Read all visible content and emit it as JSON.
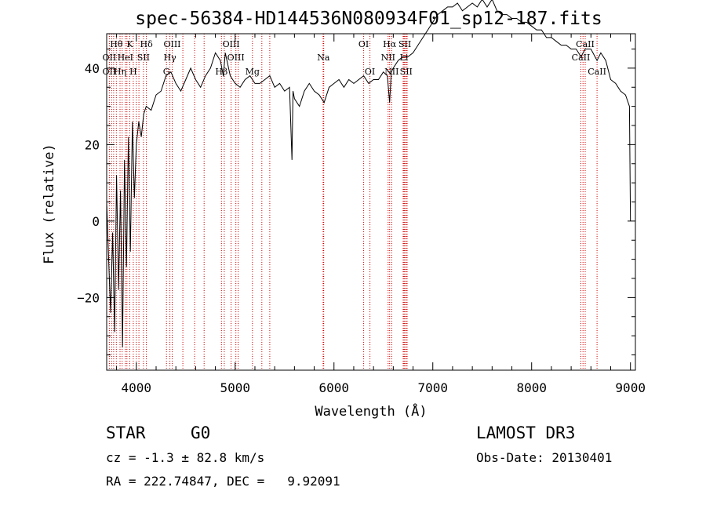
{
  "chart_data": {
    "type": "line",
    "title": "spec-56384-HD144536N080934F01_sp12-187.fits",
    "xlabel": "Wavelength (Å)",
    "ylabel": "Flux (relative)",
    "xlim": [
      3700,
      9050
    ],
    "ylim": [
      -39,
      49
    ],
    "xticks": [
      4000,
      5000,
      6000,
      7000,
      8000,
      9000
    ],
    "yticks": [
      -20,
      0,
      20,
      40
    ],
    "spectrum": {
      "name": "flux",
      "x": [
        3700,
        3720,
        3740,
        3760,
        3780,
        3800,
        3820,
        3840,
        3860,
        3880,
        3900,
        3920,
        3940,
        3960,
        3980,
        4000,
        4025,
        4050,
        4075,
        4100,
        4150,
        4200,
        4250,
        4300,
        4350,
        4400,
        4450,
        4500,
        4550,
        4600,
        4650,
        4700,
        4750,
        4800,
        4850,
        4880,
        4900,
        4950,
        5000,
        5050,
        5100,
        5150,
        5200,
        5250,
        5300,
        5350,
        5400,
        5450,
        5500,
        5550,
        5575,
        5585,
        5600,
        5650,
        5700,
        5750,
        5800,
        5850,
        5900,
        5950,
        6000,
        6050,
        6100,
        6150,
        6200,
        6250,
        6300,
        6350,
        6400,
        6450,
        6500,
        6540,
        6563,
        6580,
        6600,
        6650,
        6700,
        6750,
        6800,
        6850,
        6900,
        6950,
        7000,
        7050,
        7100,
        7150,
        7200,
        7250,
        7300,
        7350,
        7400,
        7450,
        7500,
        7550,
        7600,
        7650,
        7700,
        7750,
        7800,
        7850,
        7900,
        7950,
        8000,
        8050,
        8100,
        8150,
        8200,
        8250,
        8300,
        8350,
        8400,
        8450,
        8500,
        8542,
        8600,
        8662,
        8700,
        8750,
        8800,
        8850,
        8900,
        8950,
        8990,
        9000
      ],
      "values": [
        5,
        -10,
        -24,
        -3,
        -29,
        12,
        -18,
        8,
        -33,
        16,
        -12,
        22,
        -8,
        26,
        6,
        20,
        26,
        22,
        28,
        30,
        29,
        33,
        34,
        38,
        39,
        36,
        34,
        37,
        40,
        37,
        35,
        38,
        40,
        44,
        42,
        38,
        44,
        38,
        36,
        35,
        37,
        38,
        36,
        36,
        37,
        38,
        35,
        36,
        34,
        35,
        16,
        34,
        32,
        30,
        34,
        36,
        34,
        33,
        31,
        35,
        36,
        37,
        35,
        37,
        36,
        37,
        38,
        36,
        37,
        37,
        39,
        38,
        31,
        39,
        40,
        42,
        43,
        43,
        44,
        46,
        48,
        50,
        52,
        54,
        55,
        56,
        56,
        57,
        55,
        56,
        57,
        56,
        58,
        56,
        58,
        55,
        54,
        54,
        53,
        53,
        52,
        52,
        51,
        50,
        50,
        48,
        48,
        47,
        46,
        46,
        45,
        45,
        43,
        45,
        45,
        42,
        44,
        42,
        37,
        36,
        34,
        33,
        30,
        0
      ]
    },
    "spectral_lines": [
      {
        "label": "Hθ",
        "wavelength": 3798,
        "row": 1
      },
      {
        "label": "OII",
        "wavelength": 3727,
        "row": 2
      },
      {
        "label": "OII",
        "wavelength": 3727,
        "row": 3
      },
      {
        "label": "K",
        "wavelength": 3934,
        "row": 1
      },
      {
        "label": "HeI",
        "wavelength": 3889,
        "row": 2
      },
      {
        "label": "Hη",
        "wavelength": 3835,
        "row": 3
      },
      {
        "label": "SII",
        "wavelength": 4072,
        "row": 2
      },
      {
        "label": "Hδ",
        "wavelength": 4102,
        "row": 1
      },
      {
        "label": "H",
        "wavelength": 3969,
        "row": 3
      },
      {
        "label": "OIII",
        "wavelength": 4363,
        "row": 1
      },
      {
        "label": "Hγ",
        "wavelength": 4340,
        "row": 2
      },
      {
        "label": "G",
        "wavelength": 4305,
        "row": 3
      },
      {
        "label": "Hβ",
        "wavelength": 4861,
        "row": 3
      },
      {
        "label": "OIII",
        "wavelength": 4959,
        "row": 1
      },
      {
        "label": "OIII",
        "wavelength": 5007,
        "row": 2
      },
      {
        "label": "Mg",
        "wavelength": 5175,
        "row": 3
      },
      {
        "label": "Na",
        "wavelength": 5893,
        "row": 2
      },
      {
        "label": "OI",
        "wavelength": 6300,
        "row": 1
      },
      {
        "label": "OI",
        "wavelength": 6364,
        "row": 3
      },
      {
        "label": "Hα",
        "wavelength": 6563,
        "row": 1
      },
      {
        "label": "SII",
        "wavelength": 6717,
        "row": 1
      },
      {
        "label": "NII",
        "wavelength": 6548,
        "row": 2
      },
      {
        "label": "Li",
        "wavelength": 6708,
        "row": 2
      },
      {
        "label": "NII",
        "wavelength": 6584,
        "row": 3
      },
      {
        "label": "SII",
        "wavelength": 6731,
        "row": 3
      },
      {
        "label": "CaII",
        "wavelength": 8542,
        "row": 1
      },
      {
        "label": "CaII",
        "wavelength": 8498,
        "row": 2
      },
      {
        "label": "CaII",
        "wavelength": 8662,
        "row": 3
      }
    ],
    "extra_line_marks": [
      3750,
      3771,
      3856,
      3905,
      4000,
      4026,
      4340,
      4471,
      4590,
      4686,
      4890,
      5030,
      5270,
      5350,
      5890,
      5896,
      6548,
      6563,
      6584,
      6700,
      6740,
      8498,
      8520,
      8542,
      8662
    ]
  },
  "info": {
    "object_class": "STAR",
    "subclass": "G0",
    "survey": "LAMOST DR3",
    "redshift": "cz = -1.3 ± 82.8 km/s",
    "obs_date": "Obs-Date: 20130401",
    "coords": "RA = 222.74847, DEC =   9.92091"
  },
  "colors": {
    "spectrum": "#000000",
    "line_marker": "#cc0000",
    "axes": "#000000"
  }
}
